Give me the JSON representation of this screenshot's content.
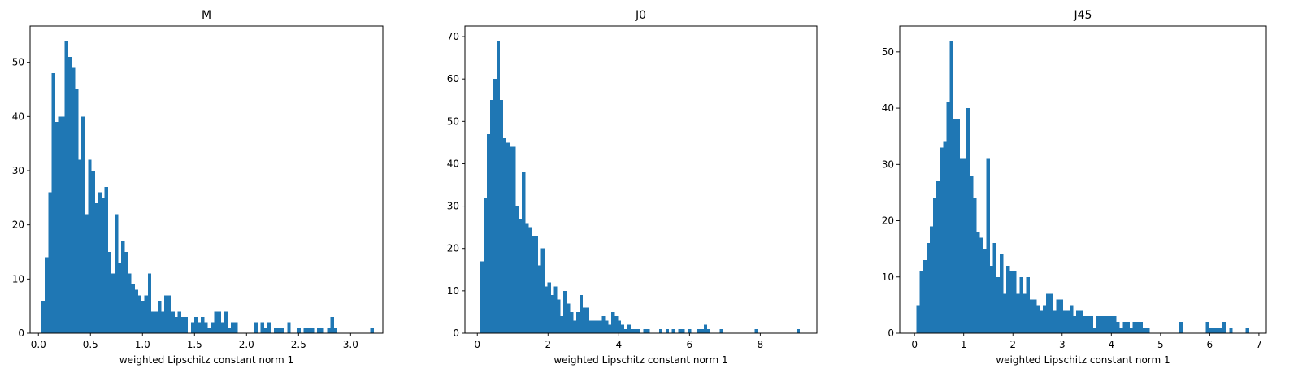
{
  "chart_data": [
    {
      "type": "bar",
      "title": "M",
      "xlabel": "weighted Lipschitz constant norm 1",
      "ylabel": "",
      "xlim": [
        -0.08,
        3.31
      ],
      "ylim": [
        0,
        56.7
      ],
      "xticks": [
        0.0,
        0.5,
        1.0,
        1.5,
        2.0,
        2.5,
        3.0
      ],
      "xticklabels": [
        "0.0",
        "0.5",
        "1.0",
        "1.5",
        "2.0",
        "2.5",
        "3.0"
      ],
      "yticks": [
        0,
        10,
        20,
        30,
        40,
        50
      ],
      "yticklabels": [
        "0",
        "10",
        "20",
        "30",
        "40",
        "50"
      ],
      "color": "#1f77b4",
      "bin_start": 0.03,
      "bin_width": 0.0319,
      "values": [
        6,
        14,
        26,
        48,
        39,
        40,
        40,
        54,
        51,
        49,
        45,
        32,
        40,
        22,
        32,
        30,
        24,
        26,
        25,
        27,
        15,
        11,
        22,
        13,
        17,
        15,
        11,
        9,
        8,
        7,
        6,
        7,
        11,
        4,
        4,
        6,
        4,
        7,
        7,
        4,
        3,
        4,
        3,
        3,
        0,
        2,
        3,
        2,
        3,
        2,
        1,
        2,
        4,
        4,
        2,
        4,
        1,
        2,
        2,
        0,
        0,
        0,
        0,
        0,
        2,
        0,
        2,
        1,
        2,
        0,
        1,
        1,
        1,
        0,
        2,
        0,
        0,
        1,
        0,
        1,
        1,
        1,
        0,
        1,
        1,
        0,
        1,
        3,
        1,
        0,
        0,
        0,
        0,
        0,
        0,
        0,
        0,
        0,
        0,
        1
      ]
    },
    {
      "type": "bar",
      "title": "J0",
      "xlabel": "weighted Lipschitz constant norm 1",
      "ylabel": "",
      "xlim": [
        -0.35,
        9.6
      ],
      "ylim": [
        0,
        72.5
      ],
      "xticks": [
        0,
        2,
        4,
        6,
        8
      ],
      "xticklabels": [
        "0",
        "2",
        "4",
        "6",
        "8"
      ],
      "yticks": [
        0,
        10,
        20,
        30,
        40,
        50,
        60,
        70
      ],
      "yticklabels": [
        "0",
        "10",
        "20",
        "30",
        "40",
        "50",
        "60",
        "70"
      ],
      "color": "#1f77b4",
      "bin_start": 0.09,
      "bin_width": 0.0902,
      "values": [
        17,
        32,
        47,
        55,
        60,
        69,
        55,
        46,
        45,
        44,
        44,
        30,
        27,
        38,
        26,
        25,
        23,
        23,
        16,
        20,
        11,
        12,
        9,
        11,
        8,
        4,
        10,
        7,
        5,
        3,
        5,
        9,
        6,
        6,
        3,
        3,
        3,
        3,
        4,
        3,
        2,
        5,
        4,
        3,
        2,
        1,
        2,
        1,
        1,
        1,
        0,
        1,
        1,
        0,
        0,
        0,
        1,
        0,
        1,
        0,
        1,
        0,
        1,
        1,
        0,
        1,
        0,
        0,
        1,
        1,
        2,
        1,
        0,
        0,
        0,
        1,
        0,
        0,
        0,
        0,
        0,
        0,
        0,
        0,
        0,
        0,
        1,
        0,
        0,
        0,
        0,
        0,
        0,
        0,
        0,
        0,
        0,
        0,
        0,
        1
      ]
    },
    {
      "type": "bar",
      "title": "J45",
      "xlabel": "weighted Lipschitz constant norm 1",
      "ylabel": "",
      "xlim": [
        -0.3,
        7.15
      ],
      "ylim": [
        0,
        54.6
      ],
      "xticks": [
        0,
        1,
        2,
        3,
        4,
        5,
        6,
        7
      ],
      "xticklabels": [
        "0",
        "1",
        "2",
        "3",
        "4",
        "5",
        "6",
        "7"
      ],
      "yticks": [
        0,
        10,
        20,
        30,
        40,
        50
      ],
      "yticklabels": [
        "0",
        "10",
        "20",
        "30",
        "40",
        "50"
      ],
      "color": "#1f77b4",
      "bin_start": 0.04,
      "bin_width": 0.0676,
      "values": [
        5,
        11,
        13,
        16,
        19,
        24,
        27,
        33,
        34,
        41,
        52,
        38,
        38,
        31,
        31,
        40,
        28,
        24,
        18,
        17,
        15,
        31,
        12,
        16,
        10,
        14,
        7,
        12,
        11,
        11,
        7,
        10,
        7,
        10,
        6,
        6,
        5,
        4,
        5,
        7,
        7,
        4,
        6,
        6,
        4,
        4,
        5,
        3,
        4,
        4,
        3,
        3,
        3,
        1,
        3,
        3,
        3,
        3,
        3,
        3,
        2,
        1,
        2,
        2,
        1,
        2,
        2,
        2,
        1,
        1,
        0,
        0,
        0,
        0,
        0,
        0,
        0,
        0,
        0,
        2,
        0,
        0,
        0,
        0,
        0,
        0,
        0,
        2,
        1,
        1,
        1,
        1,
        2,
        0,
        1,
        0,
        0,
        0,
        0,
        1
      ]
    }
  ]
}
